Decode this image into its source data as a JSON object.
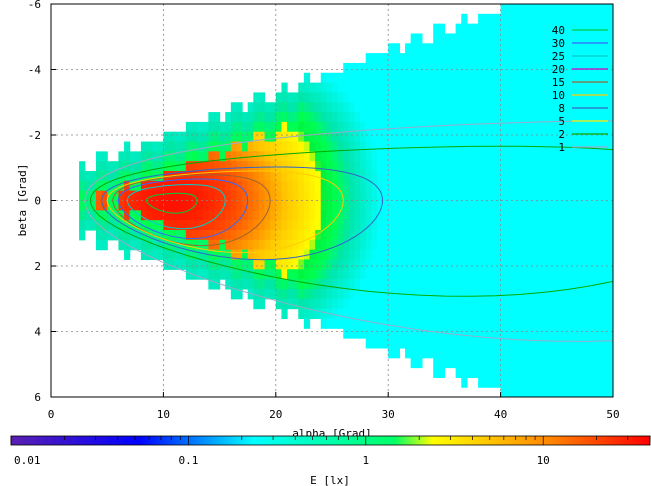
{
  "chart_data": {
    "type": "heatmap",
    "xlabel": "alpha [Grad]",
    "ylabel": "beta [Grad]",
    "colorbar_label": "E [lx]",
    "xlim": [
      0,
      50
    ],
    "ylim": [
      6,
      -6
    ],
    "x_ticks": [
      0,
      10,
      20,
      30,
      40,
      50
    ],
    "y_ticks": [
      -6,
      -4,
      -2,
      0,
      2,
      4,
      6
    ],
    "x_tick_labels": [
      "0",
      "10",
      "20",
      "30",
      "40",
      "50"
    ],
    "y_tick_labels": [
      "-6",
      "-4",
      "-2",
      "0",
      "2",
      "4",
      "6"
    ],
    "grid": true,
    "colorbar": {
      "scale": "log",
      "range": [
        0.01,
        40
      ],
      "tick_labels": [
        "0.01",
        "0.1",
        "1",
        "10"
      ],
      "tick_values": [
        0.01,
        0.1,
        1,
        10
      ],
      "colors": [
        "#5a1fb0",
        "#0000ff",
        "#00ffff",
        "#00ff66",
        "#ffff00",
        "#ff8800",
        "#ff0000"
      ]
    },
    "contour_levels": [
      {
        "value": "40",
        "color": "#00cc44"
      },
      {
        "value": "30",
        "color": "#3366ff"
      },
      {
        "value": "25",
        "color": "#00cccc"
      },
      {
        "value": "20",
        "color": "#cc00cc"
      },
      {
        "value": "15",
        "color": "#996633"
      },
      {
        "value": "10",
        "color": "#ffcc00"
      },
      {
        "value": "8",
        "color": "#3366cc"
      },
      {
        "value": "5",
        "color": "#ffee00"
      },
      {
        "value": "2",
        "color": "#00aa00"
      },
      {
        "value": "1",
        "color": "#99aacc"
      }
    ],
    "legend_position": "top-right",
    "peak": {
      "alpha": 11,
      "beta": 0.1
    },
    "field_extent_alpha": [
      2.5,
      50
    ]
  }
}
